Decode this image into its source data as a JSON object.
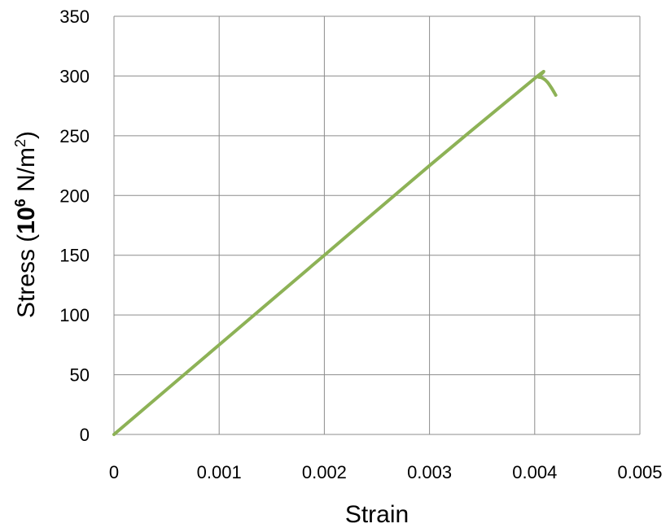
{
  "chart_data": {
    "type": "line",
    "xlabel": "Strain",
    "ylabel": {
      "prefix": "Stress (",
      "base": "10",
      "exponent": "6",
      "unit": " N/m",
      "unit_exponent": "2",
      "suffix": ")"
    },
    "xlim": [
      0,
      0.005
    ],
    "ylim": [
      0,
      350
    ],
    "xticks": [
      "0",
      "0.001",
      "0.002",
      "0.003",
      "0.004",
      "0.005"
    ],
    "yticks": [
      "0",
      "50",
      "100",
      "150",
      "200",
      "250",
      "300",
      "350"
    ],
    "grid": true,
    "legend": "none",
    "series": [
      {
        "color": "#8db256",
        "x": [
          0,
          0.001,
          0.002,
          0.003,
          0.004,
          0.00404,
          0.00408,
          0.00412,
          0.00416,
          0.0042
        ],
        "y": [
          0,
          75,
          150,
          225,
          298,
          299,
          298,
          295,
          290,
          284
        ]
      }
    ]
  }
}
